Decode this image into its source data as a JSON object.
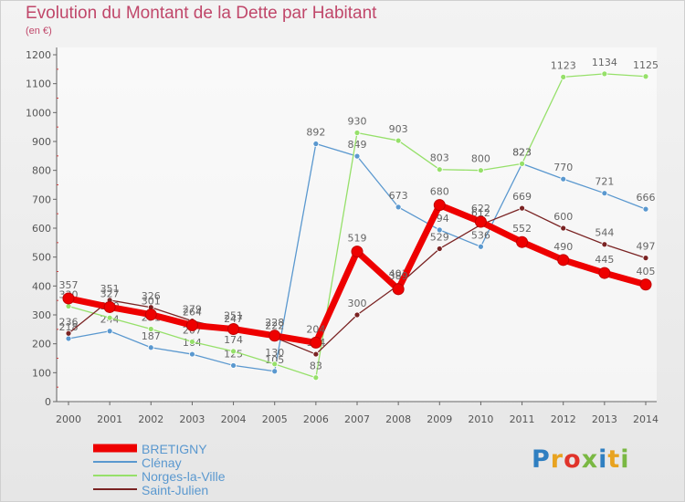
{
  "header": {
    "title": "Evolution du Montant de la Dette par Habitant",
    "subtitle": "(en €)"
  },
  "logo": {
    "text": "Proxiti",
    "colors": [
      "#2f7fc1",
      "#e8a320",
      "#e0342b",
      "#7ab843",
      "#2f7fc1",
      "#e8a320",
      "#7ab843"
    ]
  },
  "chart_data": {
    "type": "line",
    "x": [
      2000,
      2001,
      2002,
      2003,
      2004,
      2005,
      2006,
      2007,
      2008,
      2009,
      2010,
      2011,
      2012,
      2013,
      2014
    ],
    "ylim": [
      0,
      1200
    ],
    "yticks": [
      0,
      100,
      200,
      300,
      400,
      500,
      600,
      700,
      800,
      900,
      1000,
      1100,
      1200
    ],
    "grid": false,
    "legend": "bottom-left",
    "series": [
      {
        "name": "Clénay",
        "color": "#5a98cf",
        "values": [
          218,
          244,
          187,
          164,
          125,
          105,
          892,
          849,
          673,
          594,
          536,
          823,
          770,
          721,
          666
        ],
        "width": 1.3
      },
      {
        "name": "Norges-la-Ville",
        "color": "#96e06a",
        "values": [
          330,
          290,
          251,
          207,
          174,
          130,
          83,
          930,
          903,
          803,
          800,
          823,
          1123,
          1134,
          1125
        ],
        "width": 1.3
      },
      {
        "name": "Saint-Julien",
        "color": "#7a2323",
        "values": [
          236,
          351,
          326,
          279,
          247,
          222,
          164,
          300,
          403,
          529,
          612,
          669,
          600,
          544,
          497
        ],
        "width": 1.3
      },
      {
        "name": "BRETIGNY",
        "color": "#ee0000",
        "values": [
          357,
          327,
          301,
          264,
          251,
          228,
          204,
          519,
          389,
          680,
          622,
          552,
          490,
          445,
          405
        ],
        "width": 7
      }
    ]
  }
}
